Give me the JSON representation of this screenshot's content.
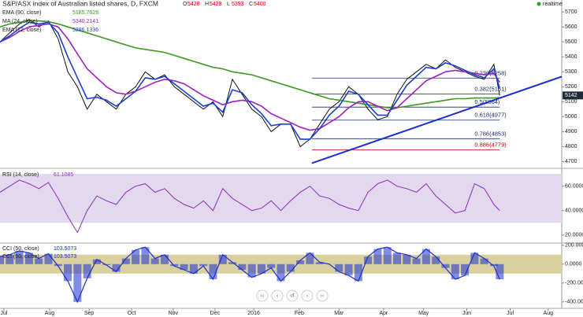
{
  "chart_data": [
    {
      "type": "line",
      "title": "S&P/ASX index of Australian listed shares, D, FXCM",
      "ohlc_labels": [
        "O",
        "H",
        "L",
        "C"
      ],
      "ohlc_values": [
        5428,
        5428,
        5393,
        5400
      ],
      "realtime": "realtime",
      "x": [
        0,
        5,
        10,
        15,
        20,
        25,
        30,
        35,
        40,
        45,
        50,
        55,
        60,
        65,
        70,
        75,
        80,
        85,
        90,
        95,
        100,
        105,
        110,
        115,
        120,
        125,
        130,
        135,
        140,
        145,
        150,
        155,
        160,
        165,
        170,
        175,
        180,
        185,
        190,
        195,
        200,
        205,
        210,
        215,
        220,
        225,
        230,
        235,
        240,
        245,
        250,
        255,
        258
      ],
      "xlim": [
        0,
        290
      ],
      "xticks": [
        {
          "value": 2,
          "label": "Jul"
        },
        {
          "value": 25.6,
          "label": "Aug"
        },
        {
          "value": 46,
          "label": "Sep"
        },
        {
          "value": 68,
          "label": "Oct"
        },
        {
          "value": 89.4,
          "label": "Nov"
        },
        {
          "value": 111,
          "label": "Dec"
        },
        {
          "value": 131,
          "label": "2016"
        },
        {
          "value": 154.5,
          "label": "Feb"
        },
        {
          "value": 175,
          "label": "Mar"
        },
        {
          "value": 198,
          "label": "Apr"
        },
        {
          "value": 218.7,
          "label": "May"
        },
        {
          "value": 241,
          "label": "Jun"
        },
        {
          "value": 263.4,
          "label": "Jul"
        },
        {
          "value": 283,
          "label": "Aug"
        }
      ],
      "ylim": [
        4660,
        5780
      ],
      "yticks": [
        4700,
        4800,
        4900,
        5000,
        5100,
        5200,
        5300,
        5400,
        5500,
        5600,
        5700
      ],
      "grid": false,
      "last_price": 5142,
      "series": [
        {
          "color": "#111111",
          "values": [
            5500,
            5560,
            5620,
            5650,
            5600,
            5640,
            5520,
            5300,
            5200,
            5050,
            5150,
            5100,
            5050,
            5150,
            5200,
            5300,
            5250,
            5280,
            5200,
            5150,
            5100,
            5050,
            5100,
            5000,
            5250,
            5150,
            5050,
            5000,
            4900,
            4950,
            4950,
            4800,
            4850,
            4950,
            5050,
            5100,
            5200,
            5150,
            5050,
            4980,
            5000,
            5150,
            5250,
            5300,
            5350,
            5320,
            5380,
            5330,
            5300,
            5270,
            5250,
            5350,
            5142
          ]
        },
        {
          "name": "EMA (90, close)",
          "legend_value": "5185.7626",
          "color": "#3c9a1e",
          "values": [
            5600,
            5620,
            5630,
            5640,
            5640,
            5635,
            5620,
            5600,
            5580,
            5560,
            5540,
            5520,
            5500,
            5480,
            5460,
            5450,
            5440,
            5430,
            5410,
            5390,
            5370,
            5350,
            5330,
            5320,
            5300,
            5290,
            5280,
            5260,
            5240,
            5220,
            5200,
            5180,
            5160,
            5140,
            5120,
            5110,
            5100,
            5090,
            5080,
            5070,
            5060,
            5060,
            5070,
            5080,
            5090,
            5100,
            5110,
            5120,
            5120,
            5125,
            5125,
            5125,
            5128
          ]
        },
        {
          "name": "MA (24, close)",
          "legend_value": "5340.2141",
          "color": "#a020c0",
          "values": [
            5500,
            5530,
            5570,
            5600,
            5610,
            5620,
            5600,
            5520,
            5420,
            5320,
            5260,
            5200,
            5160,
            5150,
            5170,
            5200,
            5230,
            5250,
            5240,
            5220,
            5180,
            5140,
            5110,
            5080,
            5100,
            5110,
            5100,
            5070,
            5020,
            4990,
            4960,
            4930,
            4910,
            4920,
            4960,
            5000,
            5060,
            5100,
            5100,
            5070,
            5040,
            5060,
            5120,
            5180,
            5240,
            5270,
            5300,
            5310,
            5300,
            5290,
            5280,
            5290,
            5230
          ]
        },
        {
          "name": "EMA (12, close)",
          "legend_value": "5286.1336",
          "color": "#1a3fd1",
          "values": [
            5500,
            5540,
            5590,
            5630,
            5620,
            5630,
            5560,
            5400,
            5260,
            5120,
            5130,
            5110,
            5070,
            5120,
            5170,
            5260,
            5250,
            5270,
            5220,
            5170,
            5120,
            5070,
            5090,
            5030,
            5180,
            5160,
            5080,
            5020,
            4940,
            4950,
            4950,
            4850,
            4850,
            4920,
            5010,
            5070,
            5170,
            5150,
            5080,
            5010,
            5010,
            5110,
            5210,
            5270,
            5330,
            5320,
            5360,
            5340,
            5310,
            5280,
            5260,
            5320,
            5190
          ]
        }
      ],
      "fib_x": [
        161,
        258
      ],
      "fib_levels": [
        {
          "label": "0.236(5258)",
          "value": 5258
        },
        {
          "label": "0.382(5151)",
          "value": 5151
        },
        {
          "label": "0.5(5064)",
          "value": 5064
        },
        {
          "label": "0.618(4977)",
          "value": 4977
        },
        {
          "label": "0.786(4853)",
          "value": 4853
        },
        {
          "label": "0.886(4779)",
          "value": 4779
        }
      ],
      "trendline": {
        "x": [
          161,
          290
        ],
        "y": [
          4689,
          5268
        ]
      }
    },
    {
      "type": "line",
      "title": "RSI (14, close)",
      "value_label": "61.1085",
      "color": "#8e2bb8",
      "x": [
        0,
        5,
        10,
        15,
        20,
        25,
        30,
        35,
        40,
        45,
        50,
        55,
        60,
        65,
        70,
        75,
        80,
        85,
        90,
        95,
        100,
        105,
        110,
        115,
        120,
        125,
        130,
        135,
        140,
        145,
        150,
        155,
        160,
        165,
        170,
        175,
        180,
        185,
        190,
        195,
        200,
        205,
        210,
        215,
        220,
        225,
        230,
        235,
        240,
        245,
        250,
        255,
        258
      ],
      "xlim": [
        0,
        290
      ],
      "ylim": [
        14,
        74
      ],
      "band": [
        30,
        70
      ],
      "yticks": [
        {
          "value": 20,
          "label": "20.0000"
        },
        {
          "value": 40,
          "label": "40.0000"
        },
        {
          "value": 60,
          "label": "60.0000"
        }
      ],
      "values": [
        55,
        60,
        65,
        62,
        58,
        63,
        50,
        35,
        22,
        40,
        52,
        48,
        45,
        55,
        60,
        62,
        55,
        58,
        50,
        45,
        42,
        48,
        40,
        58,
        50,
        45,
        40,
        42,
        48,
        40,
        48,
        55,
        60,
        52,
        50,
        45,
        42,
        40,
        55,
        62,
        65,
        60,
        58,
        55,
        62,
        52,
        45,
        38,
        40,
        62,
        58,
        45,
        40
      ]
    },
    {
      "type": "bar",
      "legend": [
        {
          "name": "CCI (50, close)",
          "value": "103.5073"
        },
        {
          "name": "CCI (50, close)",
          "value": "103.5073"
        }
      ],
      "color": "#1a2fd0",
      "x": [
        0,
        5,
        10,
        15,
        20,
        25,
        30,
        35,
        40,
        45,
        50,
        55,
        60,
        65,
        70,
        75,
        80,
        85,
        90,
        95,
        100,
        105,
        110,
        115,
        120,
        125,
        130,
        135,
        140,
        145,
        150,
        155,
        160,
        165,
        170,
        175,
        180,
        185,
        190,
        195,
        200,
        205,
        210,
        215,
        220,
        225,
        230,
        235,
        240,
        245,
        250,
        255,
        258
      ],
      "xlim": [
        0,
        290
      ],
      "ylim": [
        -460,
        215
      ],
      "band": [
        -100,
        100
      ],
      "yticks": [
        {
          "value": -400,
          "label": "-400.0000"
        },
        {
          "value": -200,
          "label": "-200.0000"
        },
        {
          "value": 0,
          "label": "0.0000"
        },
        {
          "value": 200,
          "label": "200.0000"
        }
      ],
      "values": [
        80,
        100,
        140,
        120,
        60,
        110,
        -20,
        -180,
        -400,
        -150,
        50,
        -10,
        -80,
        60,
        150,
        180,
        60,
        100,
        -20,
        -60,
        -100,
        -20,
        -160,
        100,
        20,
        -60,
        -140,
        -100,
        -40,
        -180,
        -80,
        40,
        120,
        20,
        0,
        -80,
        -120,
        -180,
        80,
        160,
        180,
        120,
        100,
        60,
        160,
        80,
        -40,
        -160,
        -120,
        120,
        60,
        -20,
        -160
      ]
    }
  ]
}
